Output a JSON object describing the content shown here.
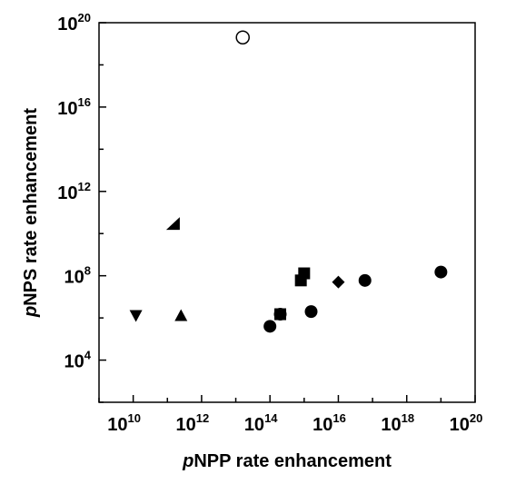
{
  "chart_data": {
    "type": "scatter",
    "title": "",
    "xlabel": {
      "italic": "p",
      "text": "NPP rate enhancement"
    },
    "ylabel": {
      "italic": "p",
      "text": "NPS rate enhancement"
    },
    "x_scale": "log",
    "y_scale": "log",
    "xlim": [
      1000000000.0,
      1e+20
    ],
    "ylim": [
      100.0,
      1e+20
    ],
    "grid": false,
    "legend": "none",
    "x_ticks": [
      {
        "value": 10000000000.0,
        "base": "10",
        "exp": "10"
      },
      {
        "value": 1000000000000.0,
        "base": "10",
        "exp": "12"
      },
      {
        "value": 100000000000000.0,
        "base": "10",
        "exp": "14"
      },
      {
        "value": 1e+16,
        "base": "10",
        "exp": "16"
      },
      {
        "value": 1e+18,
        "base": "10",
        "exp": "18"
      },
      {
        "value": 1e+20,
        "base": "10",
        "exp": "20"
      }
    ],
    "y_ticks": [
      {
        "value": 10000.0,
        "base": "10",
        "exp": "4"
      },
      {
        "value": 100000000.0,
        "base": "10",
        "exp": "8"
      },
      {
        "value": 1000000000000.0,
        "base": "10",
        "exp": "12"
      },
      {
        "value": 1e+16,
        "base": "10",
        "exp": "16"
      },
      {
        "value": 1e+20,
        "base": "10",
        "exp": "20"
      }
    ],
    "points": [
      {
        "x": 16000000000000.0,
        "y": 2e+19,
        "marker": "circle-open"
      },
      {
        "x": 150000000000.0,
        "y": 30000000000.0,
        "marker": "triangle-left"
      },
      {
        "x": 12000000000.0,
        "y": 1300000.0,
        "marker": "triangle-down"
      },
      {
        "x": 250000000000.0,
        "y": 1300000.0,
        "marker": "triangle-up"
      },
      {
        "x": 100000000000000.0,
        "y": 400000.0,
        "marker": "circle"
      },
      {
        "x": 200000000000000.0,
        "y": 1500000.0,
        "marker": "circle"
      },
      {
        "x": 200000000000000.0,
        "y": 1500000.0,
        "marker": "square"
      },
      {
        "x": 800000000000000.0,
        "y": 60000000.0,
        "marker": "square"
      },
      {
        "x": 1000000000000000.0,
        "y": 130000000.0,
        "marker": "square"
      },
      {
        "x": 1600000000000000.0,
        "y": 2000000.0,
        "marker": "circle"
      },
      {
        "x": 1e+16,
        "y": 50000000.0,
        "marker": "diamond"
      },
      {
        "x": 6e+16,
        "y": 60000000.0,
        "marker": "circle"
      },
      {
        "x": 1e+19,
        "y": 150000000.0,
        "marker": "circle"
      }
    ]
  }
}
